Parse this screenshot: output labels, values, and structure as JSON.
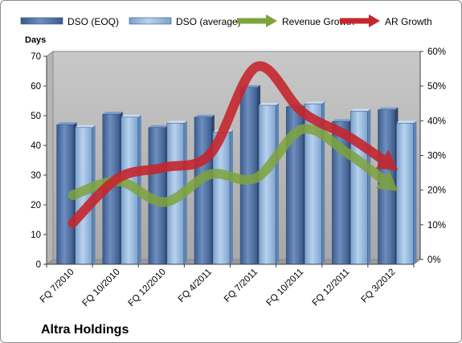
{
  "chart_data": {
    "type": "bar",
    "title": "",
    "company_label": "Altra Holdings",
    "ylabel": "Days",
    "ylim": [
      0,
      70
    ],
    "y_ticks": [
      "0",
      "10",
      "20",
      "30",
      "40",
      "50",
      "60",
      "70"
    ],
    "y2lim": [
      0,
      0.6
    ],
    "y2_ticks": [
      "0%",
      "10%",
      "20%",
      "30%",
      "40%",
      "50%",
      "60%"
    ],
    "categories": [
      "FQ 7/2010",
      "FQ 10/2010",
      "FQ 12/2010",
      "FQ 4/2011",
      "FQ 7/2011",
      "FQ 10/2011",
      "FQ 12/2011",
      "FQ 3/2012"
    ],
    "series": [
      {
        "name": "DSO (EOQ)",
        "type": "bar",
        "axis": "left",
        "color": "#4a6898",
        "values": [
          47,
          50.5,
          46,
          49.5,
          59.5,
          53,
          48,
          52
        ]
      },
      {
        "name": "DSO (average)",
        "type": "bar",
        "axis": "left",
        "color": "#8eb2d8",
        "values": [
          46,
          49.5,
          47.5,
          44.5,
          53.5,
          54,
          51.5,
          47.5
        ]
      },
      {
        "name": "Revenue Growth",
        "type": "arrow",
        "axis": "right",
        "color": "#7ea33c",
        "values": [
          0.19,
          0.23,
          0.17,
          0.25,
          0.24,
          0.38,
          0.31,
          0.21
        ]
      },
      {
        "name": "AR Growth",
        "type": "arrow",
        "axis": "right",
        "color": "#c4262e",
        "values": [
          0.11,
          0.24,
          0.27,
          0.31,
          0.56,
          0.43,
          0.36,
          0.27
        ]
      }
    ],
    "legend_position": "top",
    "grid": false
  }
}
